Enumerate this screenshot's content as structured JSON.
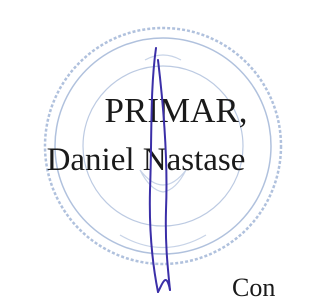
{
  "signature_block": {
    "title": "PRIMAR,",
    "name": "Daniel Nastase"
  },
  "trailing_text": "Con"
}
